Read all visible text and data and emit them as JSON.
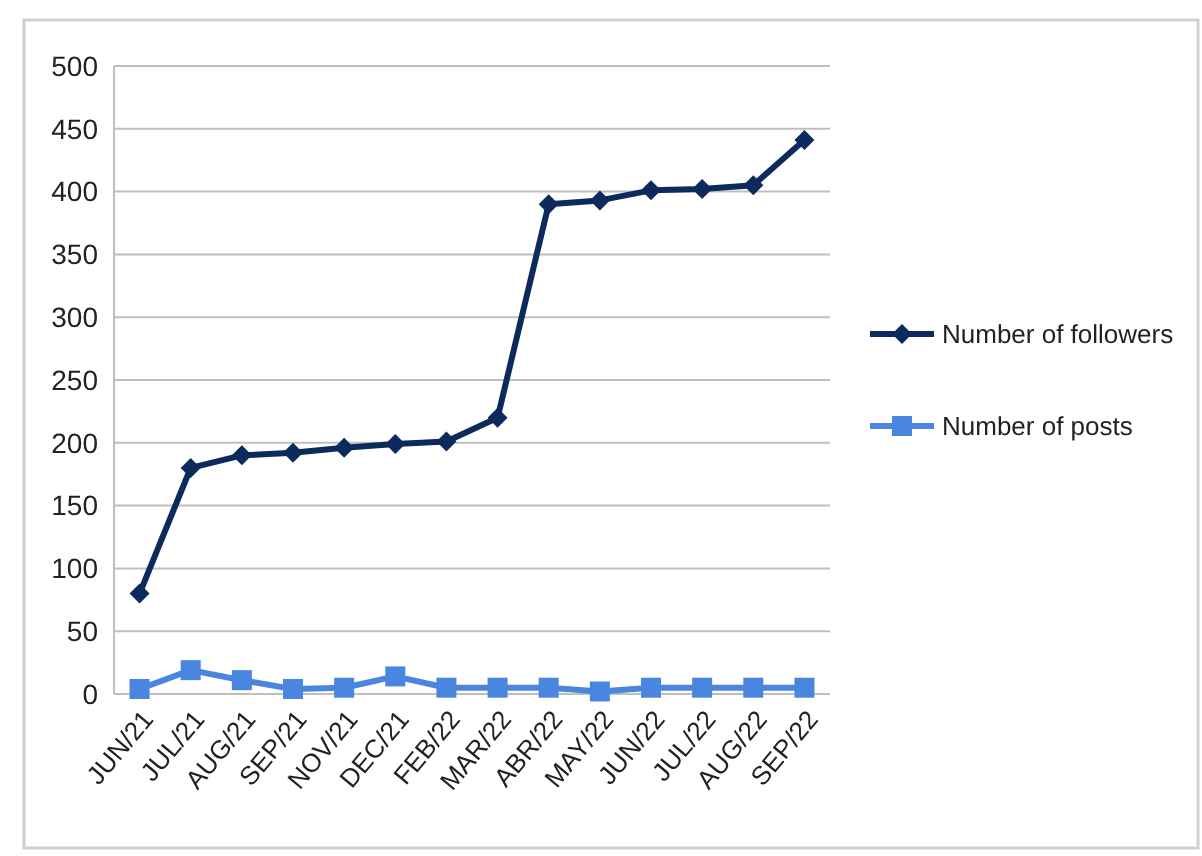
{
  "chart_data": {
    "type": "line",
    "categories": [
      "JUN/21",
      "JUL/21",
      "AUG/21",
      "SEP/21",
      "NOV/21",
      "DEC/21",
      "FEB/22",
      "MAR/22",
      "ABR/22",
      "MAY/22",
      "JUN/22",
      "JUL/22",
      "AUG/22",
      "SEP/22"
    ],
    "series": [
      {
        "name": "Number of followers",
        "color": "#0c2a5c",
        "marker": "diamond",
        "values": [
          80,
          180,
          190,
          192,
          196,
          199,
          201,
          220,
          390,
          393,
          401,
          402,
          405,
          441
        ]
      },
      {
        "name": "Number of posts",
        "color": "#4a86e0",
        "marker": "square",
        "values": [
          4,
          19,
          11,
          4,
          5,
          14,
          5,
          5,
          5,
          2,
          5,
          5,
          5,
          5
        ]
      }
    ],
    "ylim": [
      0,
      500
    ],
    "yticks": [
      0,
      50,
      100,
      150,
      200,
      250,
      300,
      350,
      400,
      450,
      500
    ],
    "grid": "y",
    "legend": "right",
    "line_style": "solid"
  }
}
